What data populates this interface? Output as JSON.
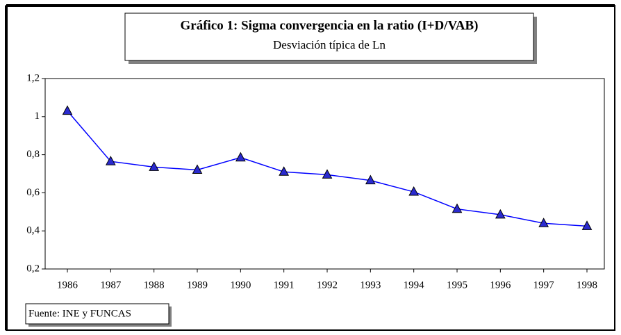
{
  "chart_data": {
    "type": "line",
    "title": "Gráfico 1: Sigma convergencia en la ratio (I+D/VAB)",
    "subtitle": "Desviación típica de Ln",
    "source": "Fuente: INE y FUNCAS",
    "categories": [
      "1986",
      "1987",
      "1988",
      "1989",
      "1990",
      "1991",
      "1992",
      "1993",
      "1994",
      "1995",
      "1996",
      "1997",
      "1998"
    ],
    "series": [
      {
        "color": "#0000ff",
        "marker_color": "#2a2acf",
        "values": [
          1.03,
          0.765,
          0.735,
          0.72,
          0.785,
          0.71,
          0.695,
          0.665,
          0.605,
          0.515,
          0.485,
          0.44,
          0.425
        ]
      }
    ],
    "ylim": [
      0.2,
      1.2
    ],
    "yticks": [
      {
        "value": 0.2,
        "label": "0,2"
      },
      {
        "value": 0.4,
        "label": "0,4"
      },
      {
        "value": 0.6,
        "label": "0,6"
      },
      {
        "value": 0.8,
        "label": "0,8"
      },
      1,
      {
        "value": 1.2,
        "label": "1,2"
      }
    ],
    "grid": false
  }
}
